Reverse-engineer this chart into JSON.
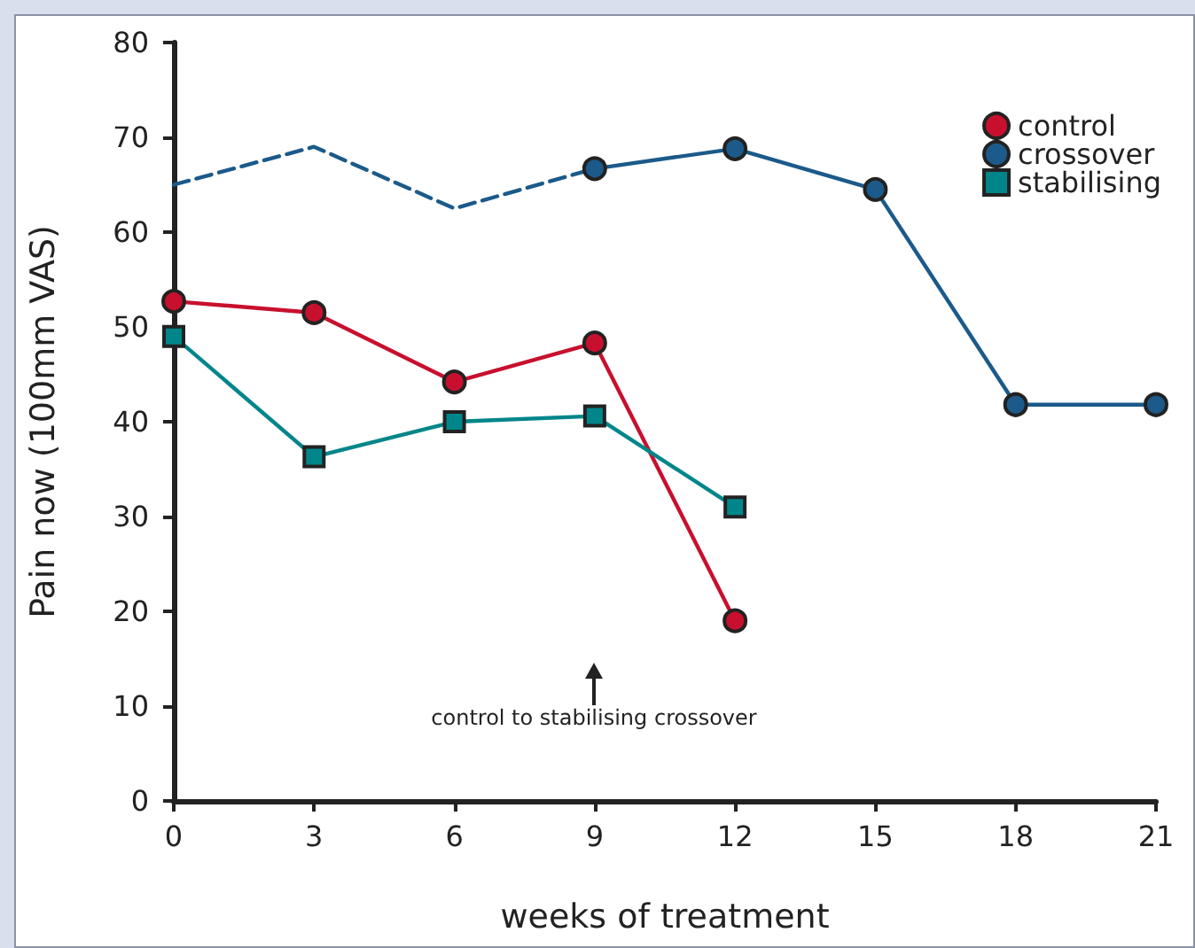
{
  "chart_data": {
    "type": "line",
    "xlabel": "weeks of treatment",
    "ylabel": "Pain now (100mm VAS)",
    "xlim": [
      0,
      21
    ],
    "xticks": [
      0,
      3,
      6,
      9,
      12,
      15,
      18,
      21
    ],
    "ylim": [
      0,
      80
    ],
    "yticks": [
      0,
      10,
      20,
      30,
      40,
      50,
      60,
      70,
      80
    ],
    "grid": false,
    "legend": "top right",
    "annotations": [
      "control to stabilising crossover"
    ],
    "series": [
      {
        "name": "control",
        "color": "#c8102e",
        "marker": "circle",
        "x": [
          0,
          3,
          6,
          9,
          12
        ],
        "values": [
          52.7,
          51.5,
          44.2,
          48.3,
          19
        ]
      },
      {
        "name": "crossover",
        "color": "#1b5a8a",
        "marker": "circle",
        "x": [
          9,
          12,
          15,
          18,
          21
        ],
        "values": [
          66.7,
          68.8,
          64.5,
          41.8,
          41.8
        ]
      },
      {
        "name": "stabilising",
        "color": "#00868a",
        "marker": "square",
        "x": [
          0,
          3,
          6,
          9,
          12
        ],
        "values": [
          49,
          36.3,
          40,
          40.6,
          31
        ]
      },
      {
        "color": "#1b5a8a",
        "marker": "none",
        "line_style": "dashed",
        "x": [
          0,
          3,
          6,
          9
        ],
        "values": [
          65,
          69,
          62.5,
          66.7
        ]
      }
    ]
  }
}
